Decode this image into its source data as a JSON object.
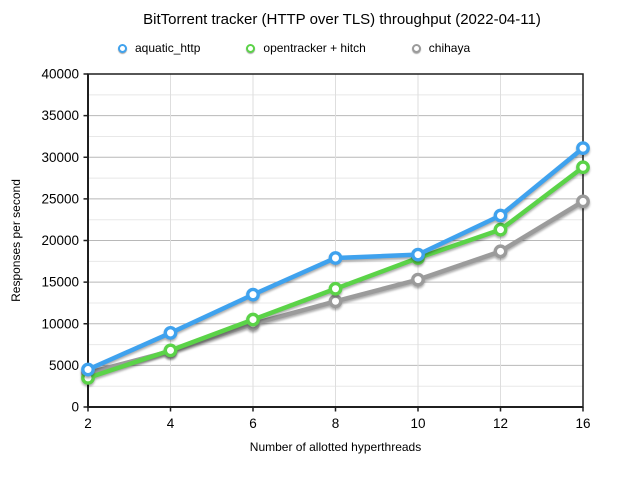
{
  "chart_data": {
    "type": "line",
    "title": "BitTorrent tracker (HTTP over TLS) throughput (2022-04-11)",
    "xlabel": "Number of allotted hyperthreads",
    "ylabel": "Responses per second",
    "categories": [
      2,
      4,
      6,
      8,
      10,
      12,
      16
    ],
    "ylim": [
      0,
      40000
    ],
    "ytick_step": 5000,
    "minor_ytick_step": 2500,
    "grid": true,
    "legend_position": "top",
    "marker": "open-circle",
    "series": [
      {
        "name": "aquatic_http",
        "color": "#3FA2EE",
        "values": [
          4500,
          8900,
          13500,
          17900,
          18300,
          23000,
          31100
        ]
      },
      {
        "name": "opentracker + hitch",
        "color": "#5BD348",
        "values": [
          3500,
          6800,
          10500,
          14200,
          17900,
          21300,
          28800
        ]
      },
      {
        "name": "chihaya",
        "color": "#9B9B9B",
        "values": [
          4100,
          6700,
          10000,
          12700,
          15300,
          18700,
          24700
        ]
      }
    ]
  },
  "style_colors": {
    "axis": "#1f1f1f",
    "major_grid": "#b8b8b8",
    "minor_grid": "#e8e8e8",
    "vertical_grid": "#dedede",
    "marker_fill": "#ffffff"
  }
}
